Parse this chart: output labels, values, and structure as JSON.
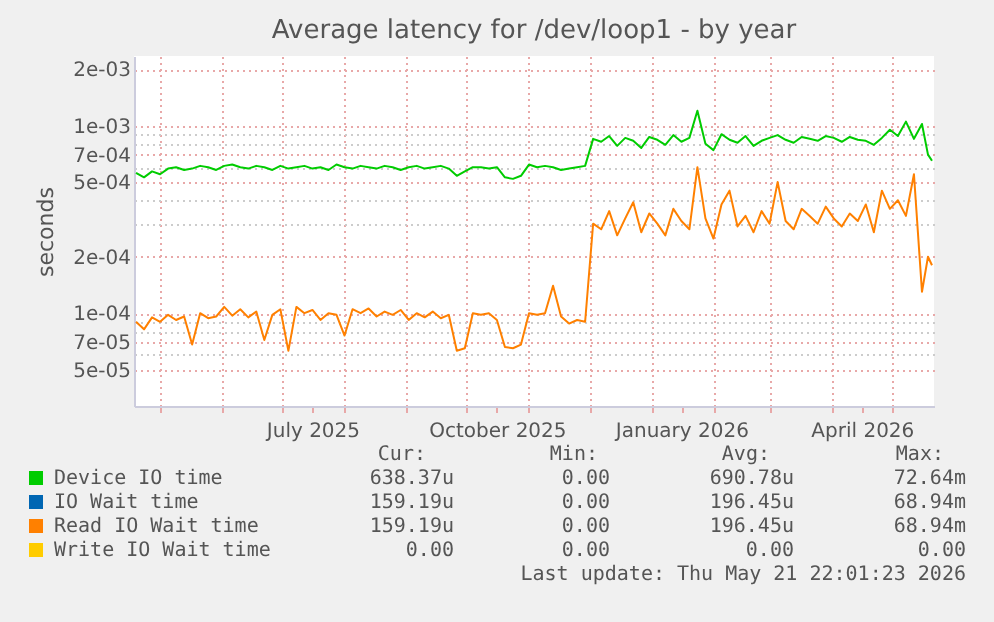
{
  "chart_data": {
    "type": "line",
    "title": "Average latency for /dev/loop1 - by year",
    "ylabel": "seconds",
    "x": [
      "2025-04-19",
      "2025-04-23",
      "2025-04-27",
      "2025-05-01",
      "2025-05-05",
      "2025-05-09",
      "2025-05-13",
      "2025-05-17",
      "2025-05-21",
      "2025-05-25",
      "2025-05-29",
      "2025-06-02",
      "2025-06-06",
      "2025-06-10",
      "2025-06-14",
      "2025-06-18",
      "2025-06-22",
      "2025-06-26",
      "2025-06-30",
      "2025-07-04",
      "2025-07-08",
      "2025-07-12",
      "2025-07-16",
      "2025-07-20",
      "2025-07-24",
      "2025-07-28",
      "2025-08-01",
      "2025-08-05",
      "2025-08-09",
      "2025-08-13",
      "2025-08-17",
      "2025-08-21",
      "2025-08-25",
      "2025-08-29",
      "2025-09-02",
      "2025-09-06",
      "2025-09-10",
      "2025-09-14",
      "2025-09-18",
      "2025-09-22",
      "2025-09-26",
      "2025-09-30",
      "2025-10-04",
      "2025-10-08",
      "2025-10-12",
      "2025-10-16",
      "2025-10-20",
      "2025-10-24",
      "2025-10-28",
      "2025-11-01",
      "2025-11-05",
      "2025-11-09",
      "2025-11-13",
      "2025-11-17",
      "2025-11-21",
      "2025-11-25",
      "2025-11-29",
      "2025-12-03",
      "2025-12-07",
      "2025-12-11",
      "2025-12-15",
      "2025-12-19",
      "2025-12-23",
      "2025-12-27",
      "2025-12-31",
      "2026-01-04",
      "2026-01-08",
      "2026-01-12",
      "2026-01-16",
      "2026-01-20",
      "2026-01-24",
      "2026-01-28",
      "2026-02-01",
      "2026-02-05",
      "2026-02-09",
      "2026-02-13",
      "2026-02-17",
      "2026-02-21",
      "2026-02-25",
      "2026-03-01",
      "2026-03-05",
      "2026-03-09",
      "2026-03-13",
      "2026-03-17",
      "2026-03-21",
      "2026-03-25",
      "2026-03-29",
      "2026-04-02",
      "2026-04-06",
      "2026-04-10",
      "2026-04-14",
      "2026-04-18",
      "2026-04-22",
      "2026-04-26",
      "2026-04-30",
      "2026-05-04",
      "2026-05-08",
      "2026-05-12",
      "2026-05-16",
      "2026-05-19",
      "2026-05-21"
    ],
    "series": [
      {
        "name": "Device IO time",
        "color": "#00cc00",
        "values": [
          0.00056,
          0.00053,
          0.00057,
          0.00055,
          0.00059,
          0.0006,
          0.00058,
          0.00059,
          0.00061,
          0.0006,
          0.00058,
          0.00061,
          0.00062,
          0.0006,
          0.00059,
          0.00061,
          0.0006,
          0.00058,
          0.00061,
          0.00059,
          0.0006,
          0.00061,
          0.00059,
          0.0006,
          0.00058,
          0.00062,
          0.0006,
          0.00059,
          0.00061,
          0.0006,
          0.00059,
          0.00061,
          0.0006,
          0.00058,
          0.0006,
          0.00061,
          0.00059,
          0.0006,
          0.00061,
          0.00059,
          0.00054,
          0.00057,
          0.0006,
          0.0006,
          0.00059,
          0.0006,
          0.00053,
          0.00052,
          0.00054,
          0.00062,
          0.0006,
          0.00061,
          0.0006,
          0.00058,
          0.00059,
          0.0006,
          0.00061,
          0.00085,
          0.00082,
          0.00088,
          0.00078,
          0.00086,
          0.00083,
          0.00076,
          0.00087,
          0.00084,
          0.00079,
          0.00089,
          0.00082,
          0.00086,
          0.0012,
          0.0008,
          0.00074,
          0.0009,
          0.00084,
          0.00081,
          0.00088,
          0.00078,
          0.00083,
          0.00086,
          0.00089,
          0.00084,
          0.00081,
          0.00087,
          0.00085,
          0.00083,
          0.00088,
          0.00086,
          0.00082,
          0.00087,
          0.00084,
          0.00083,
          0.00079,
          0.00086,
          0.00095,
          0.00088,
          0.00105,
          0.00085,
          0.00102,
          0.0007,
          0.00065
        ]
      },
      {
        "name": "IO Wait time",
        "color": "#0066b3",
        "values": [
          null,
          null,
          null,
          null,
          null,
          null,
          null,
          null,
          null,
          null,
          null,
          null,
          null,
          null,
          null,
          null,
          null,
          null,
          null,
          null,
          null,
          null,
          null,
          null,
          null,
          null,
          null,
          null,
          null,
          null,
          null,
          null,
          null,
          null,
          null,
          null,
          null,
          null,
          null,
          null,
          null,
          null,
          null,
          null,
          null,
          null,
          null,
          null,
          null,
          null,
          null,
          null,
          null,
          null,
          null,
          null,
          null,
          null,
          null,
          null,
          null,
          null,
          null,
          null,
          null,
          null,
          null,
          null,
          null,
          null,
          null,
          null,
          null,
          null,
          null,
          null,
          null,
          null,
          null,
          null,
          null,
          null,
          null,
          null,
          null,
          null,
          null,
          null,
          null,
          null,
          null,
          null,
          null,
          null,
          null,
          null,
          null,
          null,
          null,
          null,
          null
        ]
      },
      {
        "name": "Read IO Wait time",
        "color": "#ff8000",
        "values": [
          9e-05,
          8.2e-05,
          9.5e-05,
          9e-05,
          9.8e-05,
          9.2e-05,
          9.6e-05,
          6.8e-05,
          0.0001,
          9.4e-05,
          9.6e-05,
          0.000108,
          9.7e-05,
          0.000105,
          9.5e-05,
          0.000102,
          7.2e-05,
          9.8e-05,
          0.000105,
          6.3e-05,
          0.000108,
          0.0001,
          0.000104,
          9.2e-05,
          0.0001,
          9.8e-05,
          7.6e-05,
          0.000105,
          0.0001,
          0.000106,
          9.6e-05,
          0.000102,
          9.8e-05,
          0.000104,
          9.2e-05,
          0.0001,
          9.5e-05,
          0.000102,
          9.4e-05,
          9.8e-05,
          6.3e-05,
          6.5e-05,
          0.0001,
          9.8e-05,
          0.0001,
          9.2e-05,
          6.6e-05,
          6.5e-05,
          6.8e-05,
          0.0001,
          9.8e-05,
          0.0001,
          0.00014,
          9.6e-05,
          8.8e-05,
          9.2e-05,
          9e-05,
          0.0003,
          0.00028,
          0.00035,
          0.00026,
          0.00032,
          0.00039,
          0.00027,
          0.00034,
          0.0003,
          0.00026,
          0.00036,
          0.00031,
          0.00028,
          0.0006,
          0.00032,
          0.00025,
          0.00038,
          0.00045,
          0.00029,
          0.00033,
          0.00027,
          0.00035,
          0.0003,
          0.0005,
          0.00031,
          0.00028,
          0.00036,
          0.00033,
          0.0003,
          0.00037,
          0.00032,
          0.00029,
          0.00034,
          0.00031,
          0.00038,
          0.00027,
          0.00045,
          0.00036,
          0.0004,
          0.00033,
          0.00055,
          0.00013,
          0.0002,
          0.00018
        ]
      },
      {
        "name": "Write IO Wait time",
        "color": "#ffcc00",
        "values": [
          null,
          null,
          null,
          null,
          null,
          null,
          null,
          null,
          null,
          null,
          null,
          null,
          null,
          null,
          null,
          null,
          null,
          null,
          null,
          null,
          null,
          null,
          null,
          null,
          null,
          null,
          null,
          null,
          null,
          null,
          null,
          null,
          null,
          null,
          null,
          null,
          null,
          null,
          null,
          null,
          null,
          null,
          null,
          null,
          null,
          null,
          null,
          null,
          null,
          null,
          null,
          null,
          null,
          null,
          null,
          null,
          null,
          null,
          null,
          null,
          null,
          null,
          null,
          null,
          null,
          null,
          null,
          null,
          null,
          null,
          null,
          null,
          null,
          null,
          null,
          null,
          null,
          null,
          null,
          null,
          null,
          null,
          null,
          null,
          null,
          null,
          null,
          null,
          null,
          null,
          null,
          null,
          null,
          null,
          null,
          null,
          null,
          null,
          null,
          null,
          null
        ]
      }
    ],
    "xlim": [
      "2025-04-18",
      "2026-05-22"
    ],
    "xticks": [
      {
        "value": "2025-05-01",
        "label": null
      },
      {
        "value": "2025-06-01",
        "label": null
      },
      {
        "value": "2025-07-01",
        "label": null
      },
      {
        "value": "2025-07-16",
        "label": "July 2025"
      },
      {
        "value": "2025-08-01",
        "label": null
      },
      {
        "value": "2025-09-01",
        "label": null
      },
      {
        "value": "2025-10-01",
        "label": null
      },
      {
        "value": "2025-10-16",
        "label": "October 2025"
      },
      {
        "value": "2025-11-01",
        "label": null
      },
      {
        "value": "2025-12-01",
        "label": null
      },
      {
        "value": "2026-01-01",
        "label": null
      },
      {
        "value": "2026-01-16",
        "label": "January 2026"
      },
      {
        "value": "2026-02-01",
        "label": null
      },
      {
        "value": "2026-03-01",
        "label": null
      },
      {
        "value": "2026-04-01",
        "label": null
      },
      {
        "value": "2026-04-16",
        "label": "April 2026"
      },
      {
        "value": "2026-05-01",
        "label": null
      }
    ],
    "ylim": [
      3.2e-05,
      0.00235
    ],
    "yticks": [
      {
        "value": 5e-05,
        "label": "5e-05"
      },
      {
        "value": 6e-05,
        "label": null
      },
      {
        "value": 7e-05,
        "label": "7e-05"
      },
      {
        "value": 8e-05,
        "label": null
      },
      {
        "value": 9e-05,
        "label": null
      },
      {
        "value": 0.0001,
        "label": "1e-04"
      },
      {
        "value": 0.0002,
        "label": "2e-04"
      },
      {
        "value": 0.0003,
        "label": null
      },
      {
        "value": 0.0004,
        "label": null
      },
      {
        "value": 0.0005,
        "label": "5e-04"
      },
      {
        "value": 0.0006,
        "label": null
      },
      {
        "value": 0.0007,
        "label": "7e-04"
      },
      {
        "value": 0.0008,
        "label": null
      },
      {
        "value": 0.0009,
        "label": null
      },
      {
        "value": 0.001,
        "label": "1e-03"
      },
      {
        "value": 0.002,
        "label": "2e-03"
      }
    ],
    "log": true,
    "grid": true,
    "legend": "bottom",
    "marker": "none",
    "line_style": "solid",
    "annotations": [
      "Cur:",
      "Min:",
      "Avg:",
      "Max:",
      "638.37u",
      "0.00",
      "690.78u",
      "72.64m",
      "159.19u",
      "0.00",
      "196.45u",
      "68.94m",
      "159.19u",
      "0.00",
      "196.45u",
      "68.94m",
      "0.00",
      "0.00",
      "0.00",
      "0.00",
      "Last update: Thu May 21 22:01:23 2026"
    ]
  }
}
